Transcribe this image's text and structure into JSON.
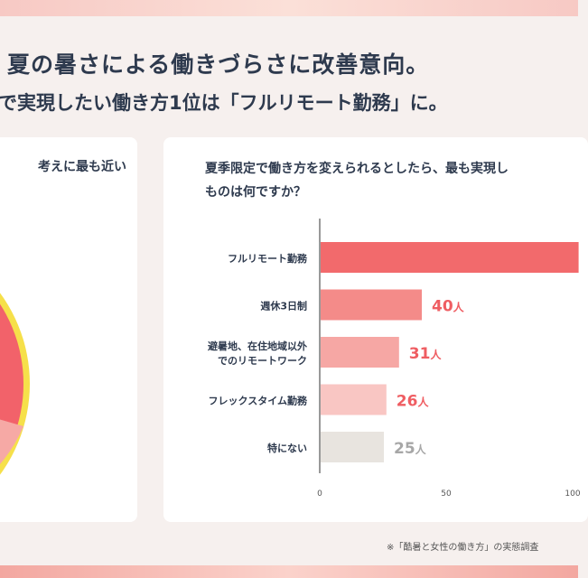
{
  "headline": "夏の暑さによる働きづらさに改善意向。",
  "subline": "で実現したい働き方1位は「フルリモート勤務」に。",
  "left_card": {
    "question_fragment": "考えに最も近い"
  },
  "right_card": {
    "question_line1": "夏季限定で働き方を変えられるとしたら、最も実現し",
    "question_line2": "ものは何ですか？"
  },
  "footnote": "※「酷暑と女性の働き方」の実態調査",
  "colors": {
    "bar_main": "#f26a6c",
    "bar_2": "#f48b89",
    "bar_3": "#f6a7a4",
    "bar_4": "#f9c6c3",
    "bar_5": "#e8e4df",
    "label_red": "#ef5d62",
    "label_gray": "#a7a7a7",
    "pie_red": "#f2626a",
    "pie_ring": "#f6e04a"
  },
  "chart_data": {
    "type": "bar",
    "orientation": "horizontal",
    "categories": [
      "フルリモート勤務",
      "週休3日制",
      "避暑地、在住地域以外でのリモートワーク",
      "フレックスタイム勤務",
      "特にない"
    ],
    "category_lines": [
      [
        "フルリモート勤務"
      ],
      [
        "週休3日制"
      ],
      [
        "避暑地、在住地域以外",
        "でのリモートワーク"
      ],
      [
        "フレックスタイム勤務"
      ],
      [
        "特にない"
      ]
    ],
    "values": [
      102,
      40,
      31,
      26,
      25
    ],
    "value_labels": [
      "",
      "40",
      "31",
      "26",
      "25"
    ],
    "unit": "人",
    "xlim": [
      0,
      100
    ],
    "xticks": [
      "0",
      "50",
      "100"
    ],
    "grid": false,
    "title": "",
    "xlabel": "",
    "ylabel": ""
  }
}
